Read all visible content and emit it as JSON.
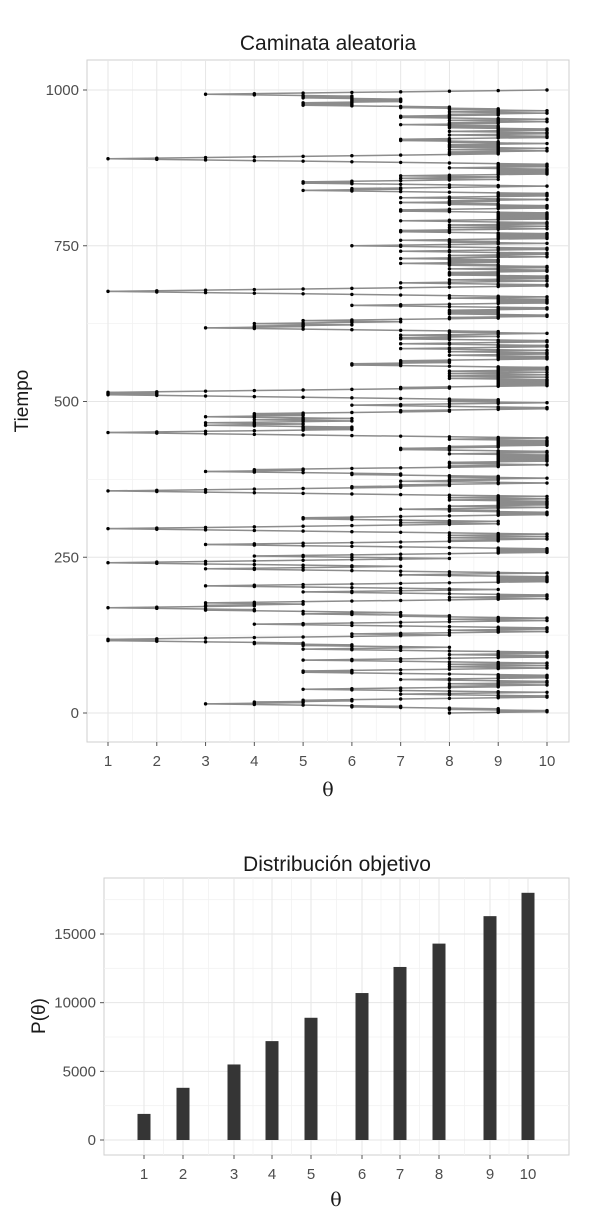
{
  "chart_data": [
    {
      "type": "line",
      "title": "Caminata aleatoria",
      "xlabel": "θ",
      "ylabel": "Tiempo",
      "xlim": [
        1,
        10
      ],
      "ylim": [
        0,
        1000
      ],
      "x_ticks": [
        "1",
        "2",
        "3",
        "4",
        "5",
        "6",
        "7",
        "8",
        "9",
        "10"
      ],
      "y_ticks": [
        "0",
        "250",
        "500",
        "750",
        "1000"
      ],
      "grid": true,
      "series": [
        {
          "x": [
            8,
            9,
            10,
            9,
            10,
            9,
            8,
            9,
            8,
            7,
            6,
            7,
            6,
            5,
            4,
            3,
            4,
            5,
            4,
            5,
            6,
            5,
            6,
            7,
            8,
            9,
            10,
            9,
            10,
            9,
            8,
            7,
            8,
            9,
            10,
            9,
            8,
            7,
            6,
            5,
            6,
            7,
            8,
            9,
            8,
            9,
            10,
            9,
            8,
            9,
            10,
            9,
            10,
            9,
            8,
            7,
            8,
            9,
            10,
            9,
            10,
            9,
            10,
            9,
            8,
            7,
            6,
            5,
            6,
            5,
            6,
            7,
            8,
            9,
            10,
            9,
            8,
            9,
            10,
            9,
            8,
            9,
            10,
            9,
            8,
            7,
            6,
            5,
            6,
            7,
            8,
            9,
            10,
            9,
            10,
            9,
            8,
            9,
            10,
            9,
            10,
            9,
            8,
            7,
            6,
            5,
            6,
            7,
            8,
            7,
            6,
            5,
            6,
            5,
            4,
            5,
            4,
            3,
            2,
            1,
            2,
            1,
            2,
            3,
            4,
            5,
            6,
            7,
            8,
            7,
            6,
            7,
            8,
            9,
            10,
            9,
            8,
            9,
            10,
            9,
            10,
            9,
            8,
            7,
            6,
            5,
            4,
            5,
            6,
            7,
            8,
            9,
            10,
            9,
            8,
            9,
            10,
            9,
            8,
            7,
            8,
            7,
            6,
            5,
            6,
            7,
            6,
            5,
            4,
            3,
            4,
            3,
            2,
            1,
            2,
            3,
            4,
            3,
            4,
            5,
            4,
            3,
            4,
            5,
            6,
            7,
            8,
            9,
            10,
            9,
            8,
            9,
            10,
            9,
            10,
            9,
            8,
            7,
            6,
            5,
            6,
            7,
            8,
            9,
            8,
            7,
            6,
            5,
            4,
            3,
            4,
            5,
            6,
            7,
            8,
            9,
            10,
            9,
            10,
            9,
            10,
            9,
            10,
            9,
            10,
            9,
            8,
            7,
            8,
            9,
            10,
            9,
            8,
            7,
            6,
            5,
            4,
            3,
            4,
            5,
            6,
            7,
            6,
            5,
            4,
            3,
            2,
            1,
            2,
            3,
            4,
            5,
            6,
            7,
            8,
            7,
            6,
            5,
            4,
            5,
            6,
            7,
            8,
            9,
            10,
            9,
            10,
            9,
            10,
            9,
            10,
            9,
            8,
            7,
            6,
            5,
            4,
            3,
            4,
            5,
            6,
            7,
            8,
            9,
            8,
            9,
            10,
            9,
            8,
            9,
            10,
            9,
            8,
            9,
            10,
            9,
            8,
            7,
            6,
            5,
            4,
            3,
            2,
            1,
            2,
            3,
            4,
            5,
            6,
            7,
            8,
            9,
            8,
            7,
            8,
            9,
            8,
            7,
            6,
            5,
            6,
            5,
            6,
            7,
            8,
            9,
            10,
            9,
            10,
            9,
            10,
            9,
            8,
            9,
            8,
            7,
            8,
            9,
            10,
            9,
            8,
            9,
            10,
            9,
            10,
            9,
            10,
            9,
            10,
            9,
            8,
            9,
            10,
            9,
            8,
            9,
            10,
            9,
            8,
            7,
            6,
            5,
            4,
            3,
            2,
            1,
            2,
            3,
            4,
            5,
            6,
            7,
            6,
            7,
            8,
            7,
            8,
            9,
            10,
            9,
            8,
            7,
            8,
            9,
            8,
            9,
            10,
            9,
            8,
            9,
            8,
            7,
            6,
            7,
            6,
            5,
            4,
            3,
            4,
            5,
            4,
            5,
            6,
            7,
            8,
            9,
            8,
            9,
            10,
            9,
            8,
            9,
            8,
            9,
            10,
            9,
            10,
            9,
            10,
            9,
            10,
            9,
            10,
            9,
            10,
            9,
            8,
            9,
            10,
            9,
            10,
            9,
            8,
            7,
            8,
            7,
            8,
            9,
            8,
            9,
            10,
            9,
            10,
            9,
            10,
            9,
            10,
            9,
            10,
            9,
            8,
            9,
            10,
            9,
            8,
            7,
            6,
            5,
            4,
            3,
            2,
            1,
            2,
            3,
            4,
            5,
            6,
            5,
            6,
            5,
            6,
            5,
            4,
            3,
            4,
            5,
            4,
            3,
            4,
            5,
            6,
            5,
            4,
            5,
            6,
            5,
            4,
            3,
            4,
            5,
            4,
            5,
            4,
            5,
            6,
            7,
            8,
            7,
            8,
            9,
            10,
            9,
            10,
            9,
            8,
            7,
            6,
            7,
            8,
            9,
            10,
            9,
            8,
            9,
            8,
            9,
            8,
            7,
            6,
            5,
            4,
            3,
            2,
            1,
            2,
            1,
            2,
            1,
            2,
            3,
            4,
            5,
            6,
            7,
            8,
            7,
            8,
            9,
            10,
            9,
            10,
            9,
            10,
            9,
            10,
            9,
            10,
            9,
            10,
            9,
            8,
            9,
            10,
            9,
            8,
            9,
            10,
            9,
            8,
            9,
            10,
            9,
            8,
            9,
            10,
            9,
            10,
            9,
            10,
            9,
            8,
            7,
            6,
            7,
            6,
            7,
            8,
            7,
            8,
            7,
            8,
            9,
            10,
            9,
            10,
            9,
            10,
            9,
            8,
            9,
            10,
            9,
            10,
            9,
            8,
            9,
            10,
            9,
            8,
            7,
            8,
            9,
            10,
            9,
            10,
            9,
            8,
            7,
            8,
            9,
            10,
            9,
            10,
            9,
            8,
            7,
            8,
            7,
            8,
            9,
            8,
            7,
            8,
            9,
            10,
            9,
            8,
            9,
            8,
            7,
            6,
            5,
            4,
            3,
            4,
            5,
            4,
            5,
            6,
            5,
            4,
            5,
            6,
            7,
            6,
            5,
            6,
            7,
            8,
            9,
            8,
            9,
            10,
            9,
            10,
            9,
            8,
            9,
            8,
            9,
            8,
            9,
            8,
            9,
            10,
            9,
            10,
            9,
            8,
            7,
            6,
            7,
            8,
            9,
            10,
            9,
            10,
            9,
            10,
            9,
            10,
            9,
            8,
            9,
            10,
            9,
            8,
            7,
            6,
            5,
            4,
            3,
            2,
            1,
            2,
            3,
            4,
            5,
            6,
            7,
            8,
            9,
            10,
            9,
            10,
            9,
            8,
            7,
            8,
            9,
            10,
            9,
            8,
            9,
            10,
            9,
            10,
            9,
            10,
            9,
            8,
            9,
            8,
            9,
            8,
            9,
            10,
            9,
            10,
            9,
            8,
            9,
            10,
            9,
            10,
            9,
            8,
            9,
            8,
            7,
            8,
            9,
            8,
            9,
            8,
            9,
            8,
            7,
            8,
            9,
            10,
            9,
            8,
            9,
            10,
            9,
            10,
            9,
            8,
            7,
            8,
            9,
            10,
            9,
            10,
            9,
            8,
            7,
            6,
            7,
            8,
            9,
            10,
            9,
            8,
            9,
            8,
            7,
            8,
            9,
            10,
            9,
            10,
            9,
            10,
            9,
            10,
            9,
            10,
            9,
            8,
            7,
            8,
            7,
            8,
            9,
            10,
            9,
            8,
            9,
            10,
            9,
            8,
            9,
            10,
            9,
            10,
            9,
            8,
            7,
            8,
            9,
            10,
            9,
            10,
            9,
            10,
            9,
            10,
            9,
            10,
            9,
            10,
            9,
            8,
            7,
            8,
            7,
            8,
            9,
            10,
            9,
            10,
            9,
            10,
            9,
            8,
            9,
            8,
            7,
            8,
            9,
            8,
            9,
            10,
            9,
            8,
            7,
            8,
            9,
            10,
            9,
            10,
            9,
            10,
            9,
            8,
            7,
            6,
            5,
            6,
            7,
            6,
            7,
            8,
            9,
            10,
            9,
            8,
            7,
            6,
            5,
            6,
            5,
            6,
            7,
            8,
            9,
            8,
            7,
            8,
            9,
            8,
            7,
            8,
            9,
            10,
            9,
            10,
            9,
            10,
            9,
            10,
            9,
            10,
            9,
            8,
            9,
            10,
            9,
            10,
            9,
            10,
            9,
            8,
            7,
            6,
            5,
            4,
            3,
            2,
            1,
            2,
            3,
            4,
            5,
            6,
            7,
            8,
            9,
            8,
            9,
            8,
            9,
            10,
            9,
            8,
            9,
            10,
            9,
            8,
            9,
            8,
            9,
            8,
            9,
            10,
            9,
            8,
            9,
            8,
            7,
            8,
            7,
            8,
            9,
            10,
            9,
            10,
            9,
            8,
            9,
            10,
            9,
            10,
            9,
            8,
            9,
            10,
            9,
            10,
            9,
            8,
            9,
            8,
            9,
            8,
            7,
            8,
            9,
            8,
            9,
            10,
            9,
            8,
            9,
            10,
            9,
            8,
            7,
            8,
            7,
            8,
            9,
            8,
            9,
            10,
            9,
            8,
            9,
            10,
            9,
            8,
            9,
            8,
            7,
            8,
            7,
            6,
            5,
            6,
            5,
            6,
            5,
            6,
            7,
            6,
            7,
            6,
            7,
            6,
            5,
            6,
            5,
            6,
            5,
            4,
            3,
            4,
            5,
            6,
            7,
            8,
            9,
            10
          ]
        }
      ]
    },
    {
      "type": "bar",
      "title": "Distribución objetivo",
      "xlabel": "θ",
      "ylabel": "P(θ)",
      "categories": [
        "1",
        "2",
        "3",
        "4",
        "5",
        "6",
        "7",
        "8",
        "9",
        "10"
      ],
      "values": [
        1900,
        3800,
        5500,
        7200,
        8900,
        10700,
        12600,
        14300,
        16300,
        18000
      ],
      "y_ticks": [
        "0",
        "5000",
        "10000",
        "15000"
      ],
      "ylim": [
        -1300,
        19000
      ],
      "grid": true
    }
  ]
}
